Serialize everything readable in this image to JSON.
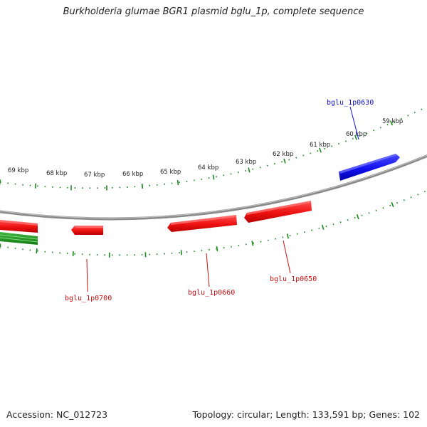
{
  "title": "Burkholderia glumae BGR1 plasmid bglu_1p, complete sequence",
  "footer": {
    "accession": "Accession: NC_012723",
    "summary": "Topology: circular; Length: 133,591 bp; Genes: 102"
  },
  "colors": {
    "backbone": "#8a8a8a",
    "ticks": "#1a8a1a",
    "forward_gene": "#1a1aee",
    "reverse_gene": "#ee1111",
    "other_gene": "#1f9a1f"
  },
  "kbp_labels": [
    "59 kbp",
    "60 kbp",
    "61 kbp",
    "62 kbp",
    "63 kbp",
    "64 kbp",
    "65 kbp",
    "66 kbp",
    "67 kbp",
    "68 kbp",
    "69 kbp"
  ],
  "gene_labels": [
    {
      "text": "bglu_1p0630",
      "strand": "forward"
    },
    {
      "text": "bglu_1p0650",
      "strand": "reverse"
    },
    {
      "text": "bglu_1p0660",
      "strand": "reverse"
    },
    {
      "text": "bglu_1p0700",
      "strand": "reverse"
    }
  ]
}
